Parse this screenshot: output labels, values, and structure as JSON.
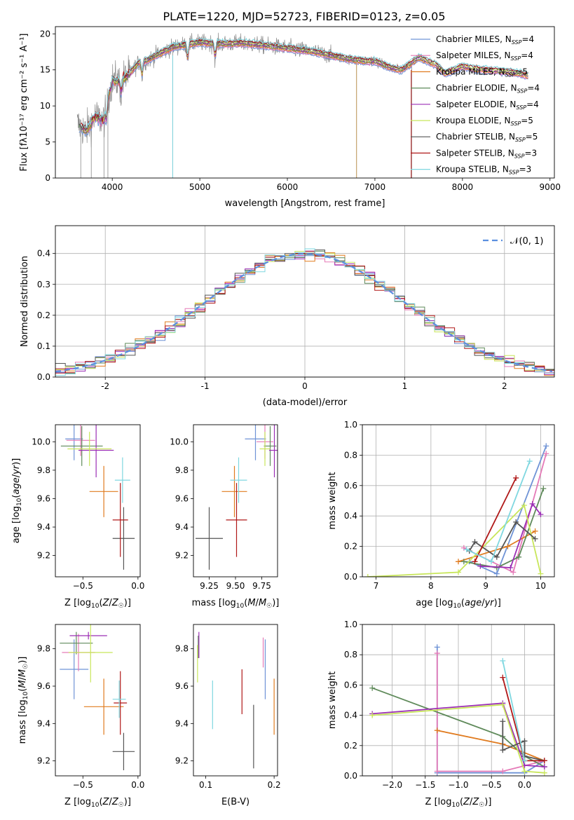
{
  "figure": {
    "title": "PLATE=1220, MJD=52723, FIBERID=0123, z=0.05"
  },
  "colors": {
    "Chabrier MILES": "#6f93d6",
    "Salpeter MILES": "#e57ab7",
    "Kroupa MILES": "#e07b1f",
    "Chabrier ELODIE": "#5f8a5a",
    "Salpeter ELODIE": "#9b2fb5",
    "Kroupa ELODIE": "#c8e65a",
    "Chabrier STELIB": "#555555",
    "Salpeter STELIB": "#b01818",
    "Kroupa STELIB": "#7fd7e0",
    "data": "#8a8a8a",
    "normal_curve": "#5b8fe0"
  },
  "chart_data": [
    {
      "id": "spectrum",
      "type": "line",
      "title": "PLATE=1220, MJD=52723, FIBERID=0123, z=0.05",
      "xlabel": "wavelength [Angstrom, rest frame]",
      "ylabel": "Flux [fλ10⁻¹⁷ erg cm⁻² s⁻¹ A⁻¹]",
      "xlim": [
        3350,
        9050
      ],
      "ylim": [
        0,
        21
      ],
      "xticks": [
        4000,
        5000,
        6000,
        7000,
        8000,
        9000
      ],
      "yticks": [
        0,
        5,
        10,
        15,
        20
      ],
      "grid": false,
      "legend_position": "top-right",
      "legend": [
        {
          "name": "Chabrier MILES",
          "nssp": "4"
        },
        {
          "name": "Salpeter MILES",
          "nssp": "4"
        },
        {
          "name": "Kroupa MILES",
          "nssp": "5"
        },
        {
          "name": "Chabrier ELODIE",
          "nssp": "4"
        },
        {
          "name": "Salpeter ELODIE",
          "nssp": "4"
        },
        {
          "name": "Kroupa ELODIE",
          "nssp": "5"
        },
        {
          "name": "Chabrier STELIB",
          "nssp": "5"
        },
        {
          "name": "Salpeter STELIB",
          "nssp": "3"
        },
        {
          "name": "Kroupa STELIB",
          "nssp": "3"
        }
      ],
      "continuum": {
        "x": [
          3600,
          3700,
          3800,
          3900,
          3950,
          4000,
          4100,
          4200,
          4300,
          4400,
          4500,
          4700,
          5000,
          5200,
          5500,
          5800,
          6000,
          6300,
          6500,
          6700,
          6900,
          7000,
          7200,
          7300,
          7400,
          7500,
          7700,
          7800,
          8000,
          8200,
          8400,
          8600,
          8750
        ],
        "y": [
          7.5,
          6.5,
          8.5,
          8.0,
          11.0,
          13.5,
          13.5,
          14.5,
          16.0,
          16.3,
          17.0,
          18.2,
          18.8,
          18.6,
          18.7,
          18.3,
          18.0,
          17.5,
          17.0,
          16.5,
          16.2,
          16.2,
          15.2,
          15.0,
          15.8,
          16.7,
          15.7,
          14.5,
          15.5,
          15.0,
          14.9,
          14.6,
          14.2
        ]
      },
      "data_extends_to": 7420,
      "absorption_features": [
        3933,
        4102,
        4340,
        4861,
        5175
      ]
    },
    {
      "id": "residuals",
      "type": "histogram",
      "xlabel": "(data-model)/error",
      "ylabel": "Normed distribution",
      "xlim": [
        -2.5,
        2.5
      ],
      "ylim": [
        0,
        0.49
      ],
      "xticks": [
        -2,
        -1,
        0,
        1,
        2
      ],
      "yticks": [
        0.0,
        0.1,
        0.2,
        0.3,
        0.4
      ],
      "grid": true,
      "legend_position": "top-right",
      "reference_curve": {
        "label": "𝒩(0, 1)",
        "mean": 0,
        "sigma": 1
      },
      "bin_width": 0.1
    },
    {
      "id": "age-vs-Z",
      "type": "errorbar",
      "xlabel": "Z [log10(Z/Z☉)]",
      "ylabel": "age  [log10(age/yr)]",
      "xlim": [
        -0.75,
        0.02
      ],
      "ylim": [
        9.05,
        10.12
      ],
      "xticks": [
        -0.5,
        0.0
      ],
      "xticklabels": [
        "−0.5",
        "0.0"
      ],
      "yticks": [
        9.2,
        9.4,
        9.6,
        9.8,
        10.0
      ],
      "points": [
        {
          "series": "Chabrier MILES",
          "x": -0.58,
          "xerr": 0.08,
          "y": 10.02,
          "yerr": 0.15
        },
        {
          "series": "Salpeter MILES",
          "x": -0.52,
          "xerr": 0.13,
          "y": 10.01,
          "yerr": 0.11
        },
        {
          "series": "Kroupa MILES",
          "x": -0.31,
          "xerr": 0.13,
          "y": 9.65,
          "yerr": 0.18
        },
        {
          "series": "Chabrier ELODIE",
          "x": -0.51,
          "xerr": 0.19,
          "y": 9.97,
          "yerr": 0.14
        },
        {
          "series": "Salpeter ELODIE",
          "x": -0.38,
          "xerr": 0.16,
          "y": 9.94,
          "yerr": 0.19
        },
        {
          "series": "Kroupa ELODIE",
          "x": -0.44,
          "xerr": 0.2,
          "y": 9.95,
          "yerr": 0.12
        },
        {
          "series": "Chabrier STELIB",
          "x": -0.13,
          "xerr": 0.1,
          "y": 9.32,
          "yerr": 0.22
        },
        {
          "series": "Salpeter STELIB",
          "x": -0.16,
          "xerr": 0.07,
          "y": 9.45,
          "yerr": 0.26
        },
        {
          "series": "Kroupa STELIB",
          "x": -0.14,
          "xerr": 0.07,
          "y": 9.73,
          "yerr": 0.16
        }
      ]
    },
    {
      "id": "age-vs-mass",
      "type": "errorbar",
      "xlabel": "mass [log10(M/M☉)]",
      "ylabel": "",
      "xlim": [
        9.1,
        9.9
      ],
      "ylim": [
        9.05,
        10.12
      ],
      "xticks": [
        9.25,
        9.5,
        9.75
      ],
      "xticklabels": [
        "9.25",
        "9.50",
        "9.75"
      ],
      "yticks": [
        9.2,
        9.4,
        9.6,
        9.8,
        10.0
      ],
      "points": [
        {
          "series": "Chabrier MILES",
          "x": 9.69,
          "xerr": 0.1,
          "y": 10.02,
          "yerr": 0.15
        },
        {
          "series": "Salpeter MILES",
          "x": 9.78,
          "xerr": 0.08,
          "y": 10.0,
          "yerr": 0.12
        },
        {
          "series": "Kroupa MILES",
          "x": 9.49,
          "xerr": 0.12,
          "y": 9.65,
          "yerr": 0.18
        },
        {
          "series": "Chabrier ELODIE",
          "x": 9.83,
          "xerr": 0.06,
          "y": 9.97,
          "yerr": 0.14
        },
        {
          "series": "Salpeter ELODIE",
          "x": 9.87,
          "xerr": 0.05,
          "y": 9.94,
          "yerr": 0.19
        },
        {
          "series": "Kroupa ELODIE",
          "x": 9.78,
          "xerr": 0.05,
          "y": 9.95,
          "yerr": 0.12
        },
        {
          "series": "Chabrier STELIB",
          "x": 9.25,
          "xerr": 0.13,
          "y": 9.32,
          "yerr": 0.22
        },
        {
          "series": "Salpeter STELIB",
          "x": 9.51,
          "xerr": 0.1,
          "y": 9.45,
          "yerr": 0.26
        },
        {
          "series": "Kroupa STELIB",
          "x": 9.53,
          "xerr": 0.08,
          "y": 9.73,
          "yerr": 0.16
        }
      ]
    },
    {
      "id": "weight-vs-age",
      "type": "line",
      "xlabel": "age  [log10(age/yr)]",
      "ylabel": "mass weight",
      "xlim": [
        6.75,
        10.25
      ],
      "ylim": [
        0,
        1.0
      ],
      "xticks": [
        7,
        8,
        9,
        10
      ],
      "yticks": [
        0.0,
        0.2,
        0.4,
        0.6,
        0.8,
        1.0
      ],
      "yticklabels": [
        "0.0",
        "0.2",
        "0.4",
        "0.6",
        "0.8",
        "1.0"
      ],
      "grid": true,
      "series": [
        {
          "name": "Chabrier MILES",
          "x": [
            8.7,
            9.2,
            10.1
          ],
          "y": [
            0.1,
            0.02,
            0.86
          ]
        },
        {
          "name": "Salpeter MILES",
          "x": [
            8.6,
            9.5,
            10.1
          ],
          "y": [
            0.19,
            0.03,
            0.81
          ]
        },
        {
          "name": "Kroupa MILES",
          "x": [
            8.5,
            9.4,
            9.9
          ],
          "y": [
            0.1,
            0.2,
            0.3
          ]
        },
        {
          "name": "Chabrier ELODIE",
          "x": [
            8.6,
            9.2,
            9.6,
            10.05
          ],
          "y": [
            0.1,
            0.06,
            0.13,
            0.58
          ]
        },
        {
          "name": "Salpeter ELODIE",
          "x": [
            8.9,
            9.45,
            9.85,
            10.0
          ],
          "y": [
            0.07,
            0.06,
            0.48,
            0.41
          ]
        },
        {
          "name": "Kroupa ELODIE",
          "x": [
            6.85,
            8.5,
            9.7,
            10.0
          ],
          "y": [
            0.0,
            0.03,
            0.47,
            0.02
          ]
        },
        {
          "name": "Chabrier STELIB",
          "x": [
            8.7,
            8.8,
            9.2,
            9.55,
            9.9
          ],
          "y": [
            0.17,
            0.23,
            0.13,
            0.36,
            0.25
          ]
        },
        {
          "name": "Salpeter STELIB",
          "x": [
            8.8,
            9.55
          ],
          "y": [
            0.1,
            0.65
          ]
        },
        {
          "name": "Kroupa STELIB",
          "x": [
            8.65,
            9.1,
            9.8
          ],
          "y": [
            0.18,
            0.1,
            0.76
          ]
        }
      ]
    },
    {
      "id": "mass-vs-Z",
      "type": "errorbar",
      "xlabel": "Z [log10(Z/Z☉)]",
      "ylabel": "mass [log10(M/M☉)]",
      "xlim": [
        -0.75,
        0.02
      ],
      "ylim": [
        9.12,
        9.93
      ],
      "xticks": [
        -0.5,
        0.0
      ],
      "xticklabels": [
        "−0.5",
        "0.0"
      ],
      "yticks": [
        9.2,
        9.4,
        9.6,
        9.8
      ],
      "points": [
        {
          "series": "Chabrier MILES",
          "x": -0.58,
          "xerr": 0.13,
          "y": 9.69,
          "yerr": 0.16
        },
        {
          "series": "Salpeter MILES",
          "x": -0.54,
          "xerr": 0.15,
          "y": 9.78,
          "yerr": 0.1
        },
        {
          "series": "Kroupa MILES",
          "x": -0.31,
          "xerr": 0.18,
          "y": 9.49,
          "yerr": 0.15
        },
        {
          "series": "Chabrier ELODIE",
          "x": -0.56,
          "xerr": 0.15,
          "y": 9.83,
          "yerr": 0.06
        },
        {
          "series": "Salpeter ELODIE",
          "x": -0.45,
          "xerr": 0.17,
          "y": 9.87,
          "yerr": 0.02
        },
        {
          "series": "Kroupa ELODIE",
          "x": -0.43,
          "xerr": 0.2,
          "y": 9.78,
          "yerr": 0.16
        },
        {
          "series": "Chabrier STELIB",
          "x": -0.13,
          "xerr": 0.1,
          "y": 9.25,
          "yerr": 0.1
        },
        {
          "series": "Salpeter STELIB",
          "x": -0.16,
          "xerr": 0.06,
          "y": 9.51,
          "yerr": 0.17
        },
        {
          "series": "Kroupa STELIB",
          "x": -0.17,
          "xerr": 0.06,
          "y": 9.53,
          "yerr": 0.1
        }
      ]
    },
    {
      "id": "mass-vs-ebv",
      "type": "errorbar",
      "xlabel": "E(B-V)",
      "ylabel": "",
      "xlim": [
        0.082,
        0.205
      ],
      "ylim": [
        9.12,
        9.93
      ],
      "xticks": [
        0.1,
        0.2
      ],
      "yticks": [
        9.2,
        9.4,
        9.6,
        9.8
      ],
      "points": [
        {
          "series": "Chabrier MILES",
          "x": 0.187,
          "y": 9.69,
          "yerr": 0.16
        },
        {
          "series": "Salpeter MILES",
          "x": 0.184,
          "y": 9.78,
          "yerr": 0.08
        },
        {
          "series": "Kroupa MILES",
          "x": 0.2,
          "y": 9.49,
          "yerr": 0.15
        },
        {
          "series": "Chabrier ELODIE",
          "x": 0.089,
          "y": 9.81,
          "yerr": 0.06
        },
        {
          "series": "Salpeter ELODIE",
          "x": 0.09,
          "y": 9.82,
          "yerr": 0.07
        },
        {
          "series": "Kroupa ELODIE",
          "x": 0.088,
          "y": 9.72,
          "yerr": 0.1
        },
        {
          "series": "Chabrier STELIB",
          "x": 0.17,
          "y": 9.33,
          "yerr": 0.17
        },
        {
          "series": "Salpeter STELIB",
          "x": 0.153,
          "y": 9.57,
          "yerr": 0.12
        },
        {
          "series": "Kroupa STELIB",
          "x": 0.11,
          "y": 9.5,
          "yerr": 0.13
        }
      ]
    },
    {
      "id": "weight-vs-Z",
      "type": "line",
      "xlabel": "Z [log10(Z/Z☉)]",
      "ylabel": "mass weight",
      "xlim": [
        -2.45,
        0.45
      ],
      "ylim": [
        0,
        1.0
      ],
      "xticks": [
        -2.0,
        -1.5,
        -1.0,
        -0.5,
        0.0
      ],
      "xticklabels": [
        "−2.0",
        "−1.5",
        "−1.0",
        "−0.5",
        "0.0"
      ],
      "yticks": [
        0.0,
        0.2,
        0.4,
        0.6,
        0.8,
        1.0
      ],
      "yticklabels": [
        "0.0",
        "0.2",
        "0.4",
        "0.6",
        "0.8",
        "1.0"
      ],
      "grid": true,
      "series": [
        {
          "name": "Chabrier MILES",
          "x": [
            -1.32,
            -1.32,
            0.0,
            0.3
          ],
          "y": [
            0.85,
            0.02,
            0.02,
            0.1
          ]
        },
        {
          "name": "Salpeter MILES",
          "x": [
            -1.32,
            -1.32,
            -0.33,
            0.3
          ],
          "y": [
            0.81,
            0.03,
            0.03,
            0.1
          ]
        },
        {
          "name": "Kroupa MILES",
          "x": [
            -1.32,
            -0.33,
            0.3
          ],
          "y": [
            0.3,
            0.21,
            0.1
          ]
        },
        {
          "name": "Chabrier ELODIE",
          "x": [
            -2.3,
            -0.33,
            0.0,
            0.3
          ],
          "y": [
            0.58,
            0.26,
            0.13,
            0.06
          ]
        },
        {
          "name": "Salpeter ELODIE",
          "x": [
            -2.3,
            -0.33,
            0.0,
            0.3
          ],
          "y": [
            0.41,
            0.48,
            0.07,
            0.06
          ]
        },
        {
          "name": "Kroupa ELODIE",
          "x": [
            -2.3,
            -0.33,
            0.0,
            0.3
          ],
          "y": [
            0.4,
            0.47,
            0.03,
            0.02
          ]
        },
        {
          "name": "Chabrier STELIB",
          "x": [
            -0.33,
            -0.33,
            0.0,
            0.0,
            0.3
          ],
          "y": [
            0.36,
            0.17,
            0.23,
            0.13,
            0.1
          ]
        },
        {
          "name": "Salpeter STELIB",
          "x": [
            -0.33,
            0.0,
            0.3
          ],
          "y": [
            0.65,
            0.1,
            0.1
          ]
        },
        {
          "name": "Kroupa STELIB",
          "x": [
            -0.33,
            0.0
          ],
          "y": [
            0.76,
            0.1
          ]
        }
      ]
    }
  ]
}
